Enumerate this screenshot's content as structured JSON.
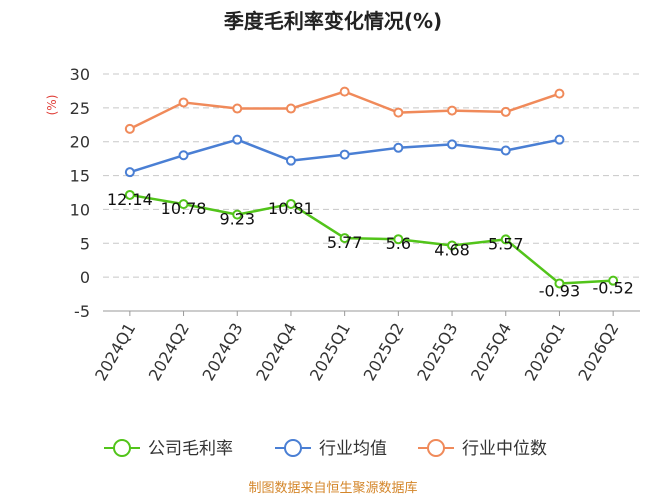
{
  "chart_data": {
    "type": "line",
    "title": "季度毛利率变化情况(%)",
    "ylabel": "(%)",
    "categories": [
      "2024Q1",
      "2024Q2",
      "2024Q3",
      "2024Q4",
      "2025Q1",
      "2025Q2",
      "2025Q3",
      "2025Q4",
      "2026Q1",
      "2026Q2"
    ],
    "ylim": [
      -5,
      30
    ],
    "yticks": [
      30,
      25,
      20,
      15,
      10,
      5,
      0,
      -5
    ],
    "grid": true,
    "legend_position": "bottom",
    "series": [
      {
        "name": "公司毛利率",
        "color": "#52c41a",
        "values": [
          12.14,
          10.78,
          9.23,
          10.81,
          5.77,
          5.6,
          4.68,
          5.57,
          -0.93,
          -0.52
        ],
        "labels": [
          "12.14",
          "10.78",
          "9.23",
          "10.81",
          "5.77",
          "5.6",
          "4.68",
          "5.57",
          "-0.93",
          "-0.52"
        ]
      },
      {
        "name": "行业均值",
        "color": "#4a7fd4",
        "values": [
          15.5,
          18.0,
          20.3,
          17.2,
          18.1,
          19.1,
          19.6,
          18.7,
          20.3,
          null
        ]
      },
      {
        "name": "行业中位数",
        "color": "#f08a5a",
        "values": [
          21.9,
          25.8,
          24.9,
          24.9,
          27.4,
          24.3,
          24.6,
          24.4,
          27.1,
          null
        ]
      }
    ]
  },
  "source": "制图数据来自恒生聚源数据库"
}
